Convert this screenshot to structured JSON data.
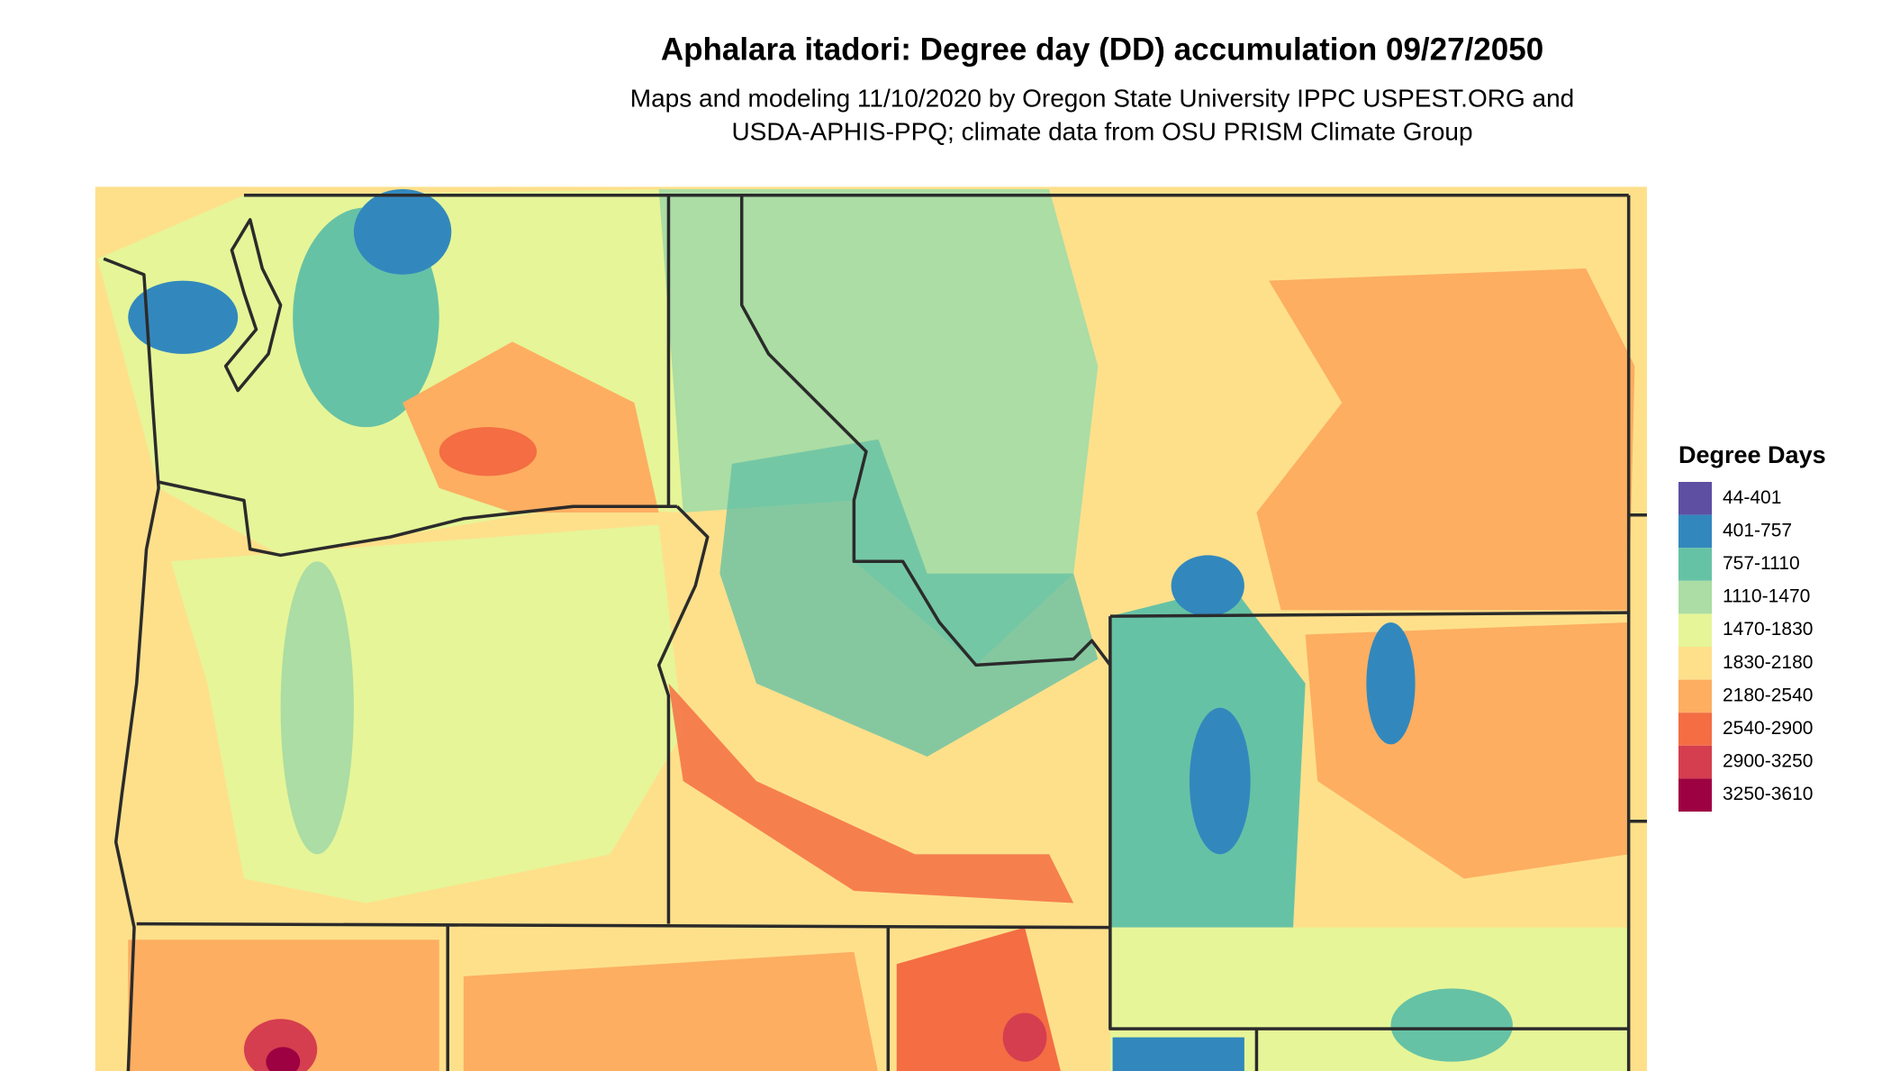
{
  "title": "Aphalara itadori: Degree day (DD) accumulation 09/27/2050",
  "subtitle": [
    "Maps and modeling 11/10/2020 by Oregon State University IPPC USPEST.ORG and",
    "USDA-APHIS-PPQ; climate data from OSU PRISM Climate Group"
  ],
  "legend": {
    "title": "Degree Days",
    "items": [
      {
        "label": "44-401",
        "color": "#5e4fa2"
      },
      {
        "label": "401-757",
        "color": "#3288bd"
      },
      {
        "label": "757-1110",
        "color": "#66c2a5"
      },
      {
        "label": "1110-1470",
        "color": "#abdda4"
      },
      {
        "label": "1470-1830",
        "color": "#e6f598"
      },
      {
        "label": "1830-2180",
        "color": "#fee08b"
      },
      {
        "label": "2180-2540",
        "color": "#fdae61"
      },
      {
        "label": "2540-2900",
        "color": "#f46d43"
      },
      {
        "label": "2900-3250",
        "color": "#d53e4f"
      },
      {
        "label": "3250-3610",
        "color": "#9e0142"
      }
    ]
  }
}
